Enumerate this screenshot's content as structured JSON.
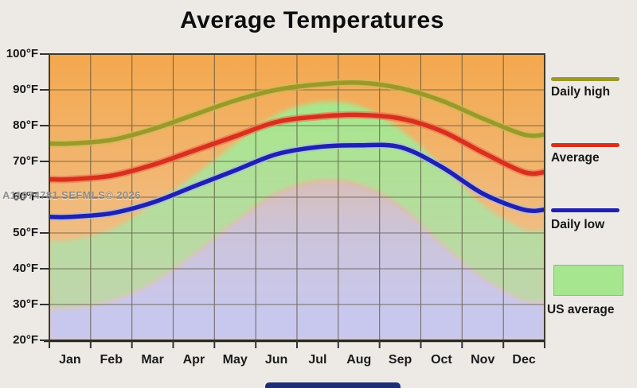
{
  "page": {
    "watermark": "A11974781 SEFMLS© 2026"
  },
  "chart_data": {
    "type": "line",
    "title": "Average Temperatures",
    "x_categories": [
      "Jan",
      "Feb",
      "Mar",
      "Apr",
      "May",
      "Jun",
      "Jul",
      "Aug",
      "Sep",
      "Oct",
      "Nov",
      "Dec"
    ],
    "y_tick_labels": [
      "100°F",
      "90°F",
      "80°F",
      "70°F",
      "60°F",
      "50°F",
      "40°F",
      "30°F",
      "20°F"
    ],
    "y_ticks": [
      100,
      90,
      80,
      70,
      60,
      50,
      40,
      30,
      20
    ],
    "ylim": [
      20,
      100
    ],
    "y_unit": "°F",
    "grid": true,
    "legend_position": "right",
    "series": [
      {
        "name": "Daily high",
        "color": "#9c992a",
        "halo": "#c6bf55",
        "values": [
          75,
          76,
          79,
          83,
          87,
          90,
          91.5,
          92,
          90.5,
          87,
          82,
          77.5
        ]
      },
      {
        "name": "Average",
        "color": "#d8301c",
        "halo": "#ee6e54",
        "values": [
          65,
          66,
          69,
          73,
          77,
          81,
          82.5,
          83,
          82,
          78.5,
          72.5,
          67
        ]
      },
      {
        "name": "Daily low",
        "color": "#2020b2",
        "halo": "#a3bce9",
        "values": [
          54.5,
          55.5,
          58.5,
          63,
          67.5,
          72,
          74,
          74.5,
          74,
          68.5,
          61,
          56.5
        ]
      }
    ],
    "band": {
      "name": "US average",
      "high": [
        48,
        51,
        58,
        66,
        75,
        83,
        86.5,
        85.5,
        79,
        69,
        58,
        51
      ],
      "low": [
        29,
        31,
        36,
        44,
        53,
        61,
        64.5,
        63.5,
        57.5,
        47,
        37.5,
        31
      ]
    },
    "colors": {
      "plot_bg_top": "#f4a84e",
      "plot_bg_bottom": "#eec9a2",
      "band_green_top": "#a7e78c",
      "band_green_bottom": "#c4d2b2",
      "below_band_top": "#dcbcae",
      "below_band_mid": "#ccc4da",
      "below_band_bottom": "#c8c8ee",
      "grid": "#55503a",
      "border": "#3f3c2c",
      "tick": "#333333",
      "legend_green_box": "#a5e68e",
      "page_bg": "#edeae6",
      "bottom_bar": "#1d2e74",
      "watermark": "#7a7a7a"
    }
  },
  "legend": {
    "items": [
      {
        "label": "Daily high",
        "swatch": "line",
        "color": "#9c992a"
      },
      {
        "label": "Average",
        "swatch": "line",
        "color": "#d8301c"
      },
      {
        "label": "Daily low",
        "swatch": "line",
        "color": "#2020b2"
      },
      {
        "label": "US average",
        "swatch": "box",
        "color": "#a5e68e"
      }
    ]
  }
}
